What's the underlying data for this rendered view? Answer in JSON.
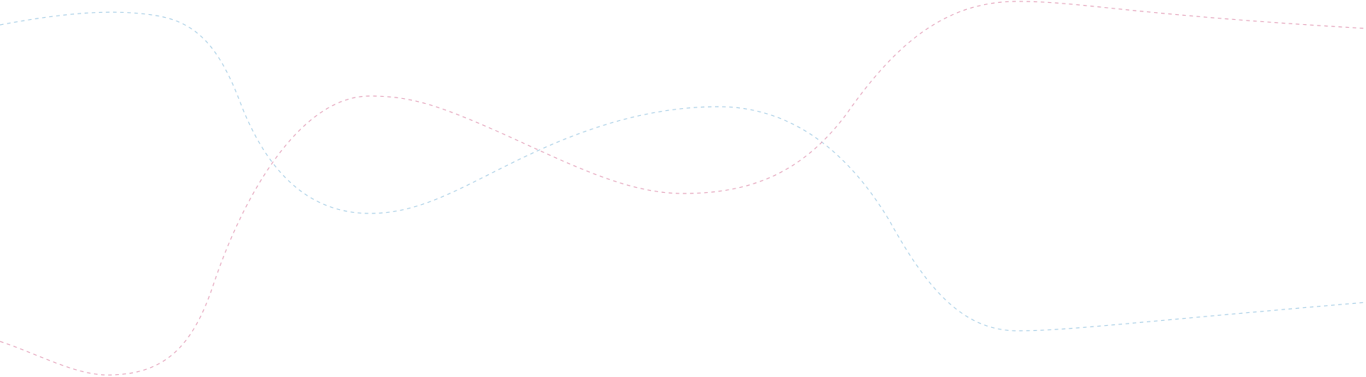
{
  "colors": {
    "background": "#ffffff",
    "wave_blue": "#a9cfe6",
    "wave_pink": "#e4a3bb"
  }
}
